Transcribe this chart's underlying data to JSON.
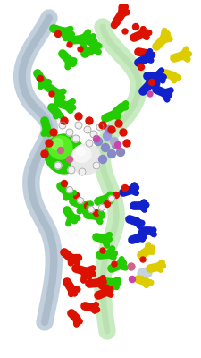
{
  "bg_color": "#ffffff",
  "backbone1_color": "#b8c8d8",
  "backbone1_edge": "#8899aa",
  "backbone2_color": "#c0e8b8",
  "backbone2_edge": "#88bb88",
  "green": "#22cc00",
  "green_dark": "#119900",
  "red": "#dd1100",
  "blue": "#1122cc",
  "yellow": "#ddcc00",
  "white_atom": "#f0f0f0",
  "white_atom_edge": "#aaaaaa",
  "blue_purple": "#8888cc",
  "pink": "#cc6688",
  "magenta": "#cc44aa",
  "figsize": [
    2.25,
    4.0
  ],
  "dpi": 100
}
